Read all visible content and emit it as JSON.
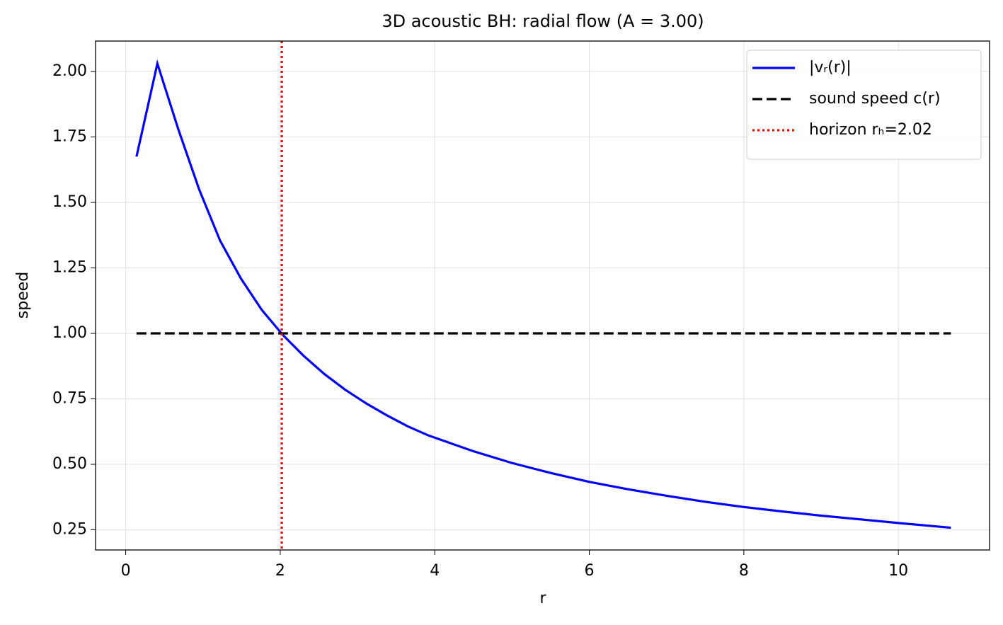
{
  "chart_data": {
    "type": "line",
    "title": "3D acoustic BH: radial flow (A = 3.00)",
    "xlabel": "r",
    "ylabel": "speed",
    "xlim": [
      -0.39,
      11.18
    ],
    "ylim": [
      0.173,
      2.116
    ],
    "xticks": [
      0,
      2,
      4,
      6,
      8,
      10
    ],
    "yticks": [
      {
        "value": 0.25,
        "label": "0.25"
      },
      {
        "value": 0.5,
        "label": "0.50"
      },
      {
        "value": 0.75,
        "label": "0.75"
      },
      {
        "value": 1.0,
        "label": "1.00"
      },
      {
        "value": 1.25,
        "label": "1.25"
      },
      {
        "value": 1.5,
        "label": "1.50"
      },
      {
        "value": 1.75,
        "label": "1.75"
      },
      {
        "value": 2.0,
        "label": "2.00"
      }
    ],
    "grid": true,
    "legend": "upper right",
    "series": [
      {
        "name": "|vᵣ(r)|",
        "color": "#0000ff",
        "style": "solid",
        "x": [
          0.14,
          0.41,
          0.68,
          0.95,
          1.22,
          1.49,
          1.76,
          2.03,
          2.3,
          2.57,
          2.84,
          3.11,
          3.38,
          3.65,
          3.92,
          4.5,
          5,
          5.5,
          6,
          6.5,
          7,
          7.5,
          8,
          8.5,
          9,
          9.5,
          10,
          10.68
        ],
        "values": [
          1.675,
          2.03,
          1.78,
          1.55,
          1.355,
          1.21,
          1.09,
          0.995,
          0.915,
          0.845,
          0.785,
          0.733,
          0.687,
          0.645,
          0.61,
          0.55,
          0.505,
          0.467,
          0.433,
          0.405,
          0.38,
          0.357,
          0.337,
          0.32,
          0.304,
          0.29,
          0.276,
          0.258
        ]
      },
      {
        "name": "sound speed c(r)",
        "color": "#000000",
        "style": "dashed",
        "x": [
          0.14,
          10.68
        ],
        "values": [
          1.0,
          1.0
        ]
      }
    ],
    "vlines": [
      {
        "name": "horizon rₕ=2.02",
        "color": "#ff0000",
        "style": "dotted",
        "x": 2.02
      }
    ]
  }
}
